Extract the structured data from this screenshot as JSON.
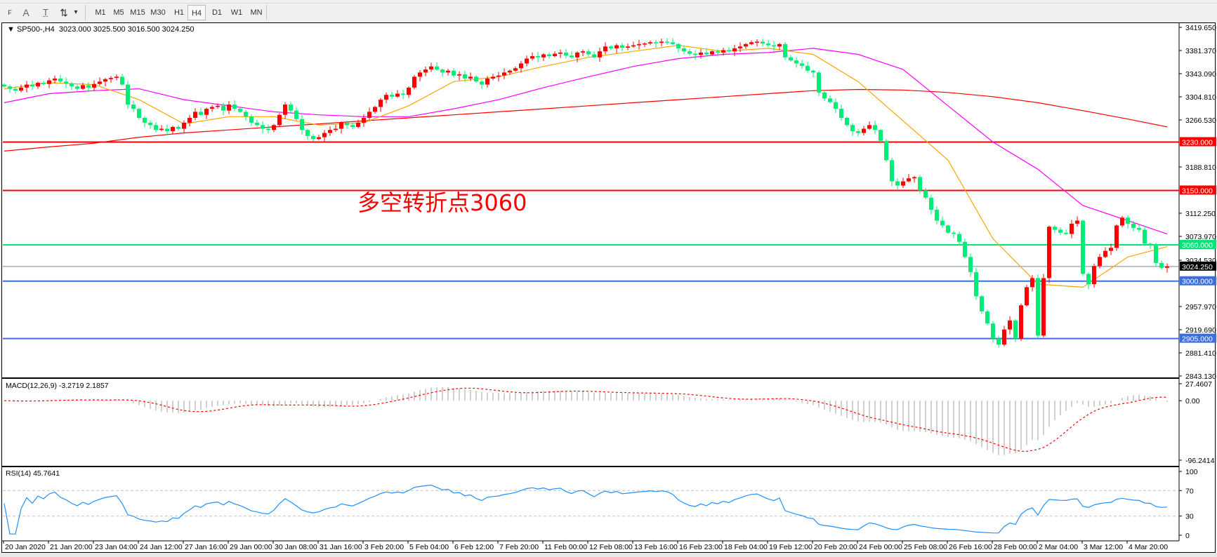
{
  "toolbar": {
    "tools": [
      {
        "name": "period-separators-icon",
        "glyph": "F"
      },
      {
        "name": "text-label-icon",
        "glyph": "A"
      },
      {
        "name": "text-icon",
        "glyph": "T"
      },
      {
        "name": "arrows-icon",
        "glyph": "⇅"
      }
    ],
    "dropdown_glyph": "▾",
    "timeframes": [
      "M1",
      "M5",
      "M15",
      "M30",
      "H1",
      "H4",
      "D1",
      "W1",
      "MN"
    ],
    "active_timeframe": "H4"
  },
  "chart": {
    "title": "▼ SP500-,H4  3023.000 3025.500 3016.500 3024.250",
    "symbol": "SP500-",
    "timeframe": "H4",
    "ohlc": {
      "open": 3023.0,
      "high": 3025.5,
      "low": 3016.5,
      "close": 3024.25
    },
    "annotation": "多空转折点3060",
    "price_axis": [
      "3419.650",
      "3381.370",
      "3343.090",
      "3304.810",
      "3266.530",
      "3188.810",
      "3112.250",
      "3073.970",
      "3034.530",
      "2957.970",
      "2919.690",
      "2881.410",
      "2843.130"
    ],
    "price_range": [
      2843.13,
      3419.65
    ],
    "current_price": "3024.250",
    "hlines": [
      {
        "price": 3230,
        "label": "3230.000",
        "color": "#ff0000"
      },
      {
        "price": 3150,
        "label": "3150.000",
        "color": "#ff0000"
      },
      {
        "price": 3060,
        "label": "3060.000",
        "color": "#00e676"
      },
      {
        "price": 3000,
        "label": "3000.000",
        "color": "#3c6edc"
      },
      {
        "price": 2905,
        "label": "2905.000",
        "color": "#3c6edc"
      }
    ],
    "colors": {
      "bull": "#ff0000",
      "bear": "#00ee76",
      "ma_fast": "#ffa500",
      "ma_mid": "#ff00ff",
      "ma_slow": "#ff0000",
      "current": "#778899"
    },
    "time_axis": [
      "20 Jan 2020",
      "21 Jan 20:00",
      "23 Jan 04:00",
      "24 Jan 12:00",
      "27 Jan 16:00",
      "29 Jan 00:00",
      "30 Jan 08:00",
      "31 Jan 16:00",
      "3 Feb 20:00",
      "5 Feb 04:00",
      "6 Feb 12:00",
      "7 Feb 20:00",
      "11 Feb 00:00",
      "12 Feb 08:00",
      "13 Feb 16:00",
      "16 Feb 23:00",
      "18 Feb 04:00",
      "19 Feb 12:00",
      "20 Feb 20:00",
      "24 Feb 00:00",
      "25 Feb 08:00",
      "26 Feb 16:00",
      "28 Feb 00:00",
      "2 Mar 04:00",
      "3 Mar 12:00",
      "4 Mar 20:00"
    ],
    "closes": [
      3322,
      3318,
      3315,
      3320,
      3325,
      3322,
      3328,
      3326,
      3332,
      3335,
      3330,
      3327,
      3322,
      3318,
      3324,
      3320,
      3326,
      3330,
      3334,
      3336,
      3338,
      3325,
      3292,
      3285,
      3270,
      3262,
      3258,
      3250,
      3252,
      3248,
      3255,
      3252,
      3262,
      3270,
      3280,
      3275,
      3285,
      3288,
      3290,
      3282,
      3292,
      3285,
      3280,
      3272,
      3262,
      3258,
      3252,
      3250,
      3258,
      3275,
      3292,
      3282,
      3268,
      3250,
      3240,
      3235,
      3238,
      3245,
      3250,
      3252,
      3262,
      3258,
      3255,
      3262,
      3270,
      3280,
      3288,
      3300,
      3308,
      3305,
      3310,
      3308,
      3320,
      3338,
      3345,
      3350,
      3355,
      3350,
      3345,
      3348,
      3340,
      3342,
      3335,
      3338,
      3330,
      3325,
      3335,
      3338,
      3340,
      3345,
      3348,
      3352,
      3360,
      3368,
      3372,
      3370,
      3375,
      3372,
      3376,
      3378,
      3373,
      3370,
      3378,
      3380,
      3375,
      3370,
      3380,
      3388,
      3385,
      3390,
      3386,
      3388,
      3390,
      3392,
      3393,
      3395,
      3394,
      3396,
      3395,
      3392,
      3385,
      3380,
      3376,
      3374,
      3378,
      3375,
      3380,
      3378,
      3382,
      3380,
      3385,
      3388,
      3392,
      3395,
      3396,
      3393,
      3390,
      3388,
      3392,
      3370,
      3365,
      3360,
      3356,
      3348,
      3345,
      3312,
      3302,
      3296,
      3285,
      3270,
      3258,
      3248,
      3245,
      3252,
      3258,
      3250,
      3232,
      3200,
      3165,
      3158,
      3165,
      3170,
      3172,
      3150,
      3138,
      3118,
      3100,
      3092,
      3080,
      3078,
      3065,
      3040,
      3015,
      2975,
      2950,
      2930,
      2905,
      2895,
      2920,
      2935,
      2905,
      2960,
      2990,
      3005,
      2910,
      3005,
      3090,
      3085,
      3080,
      3078,
      3095,
      3100,
      3012,
      2995,
      3025,
      3040,
      3050,
      3055,
      3092,
      3105,
      3095,
      3088,
      3085,
      3062,
      3060,
      3030,
      3022,
      3024.25
    ],
    "ma_fast": [
      3318,
      3328,
      3325,
      3300,
      3260,
      3272,
      3272,
      3258,
      3262,
      3290,
      3330,
      3338,
      3355,
      3370,
      3380,
      3390,
      3380,
      3385,
      3375,
      3330,
      3265,
      3200,
      3070,
      2995,
      2990,
      3040,
      3057
    ],
    "ma_mid": [
      3295,
      3310,
      3315,
      3318,
      3300,
      3290,
      3280,
      3275,
      3272,
      3272,
      3285,
      3300,
      3320,
      3338,
      3355,
      3368,
      3375,
      3378,
      3385,
      3375,
      3350,
      3290,
      3230,
      3185,
      3125,
      3100,
      3078
    ],
    "ma_slow": [
      3215,
      3222,
      3228,
      3238,
      3245,
      3250,
      3255,
      3260,
      3265,
      3270,
      3275,
      3280,
      3285,
      3290,
      3295,
      3300,
      3305,
      3310,
      3315,
      3317,
      3316,
      3312,
      3305,
      3295,
      3282,
      3268,
      3255
    ]
  },
  "macd": {
    "label": "MACD(12,26,9) -3.2719 2.1857",
    "axis": [
      "27.4607",
      "0.00",
      "-96.2414"
    ],
    "range": [
      -96.2414,
      27.4607
    ],
    "colors": {
      "histogram": "#c0c0c0",
      "signal": "#ff0000"
    }
  },
  "rsi": {
    "label": "RSI(14) 45.7641",
    "axis": [
      "100",
      "70",
      "30",
      "0"
    ],
    "levels": [
      70,
      30
    ],
    "color": "#1e90ff"
  }
}
